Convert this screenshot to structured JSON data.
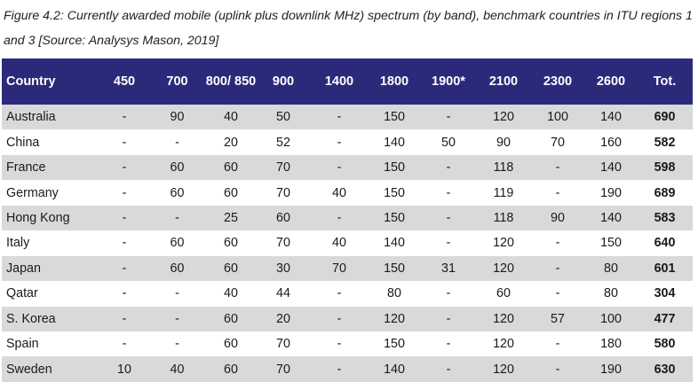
{
  "caption": "Figure 4.2: Currently awarded mobile (uplink plus downlink MHz) spectrum (by band), benchmark countries in ITU regions 1 and 3 [Source: Analysys Mason, 2019]",
  "table": {
    "headers": [
      "Country",
      "450",
      "700",
      "800/ 850",
      "900",
      "1400",
      "1800",
      "1900*",
      "2100",
      "2300",
      "2600",
      "Tot."
    ],
    "rows": [
      [
        "Australia",
        "-",
        "90",
        "40",
        "50",
        "-",
        "150",
        "-",
        "120",
        "100",
        "140",
        "690"
      ],
      [
        "China",
        "-",
        "-",
        "20",
        "52",
        "-",
        "140",
        "50",
        "90",
        "70",
        "160",
        "582"
      ],
      [
        "France",
        "-",
        "60",
        "60",
        "70",
        "-",
        "150",
        "-",
        "118",
        "-",
        "140",
        "598"
      ],
      [
        "Germany",
        "-",
        "60",
        "60",
        "70",
        "40",
        "150",
        "-",
        "119",
        "-",
        "190",
        "689"
      ],
      [
        "Hong Kong",
        "-",
        "-",
        "25",
        "60",
        "-",
        "150",
        "-",
        "118",
        "90",
        "140",
        "583"
      ],
      [
        "Italy",
        "-",
        "60",
        "60",
        "70",
        "40",
        "140",
        "-",
        "120",
        "-",
        "150",
        "640"
      ],
      [
        "Japan",
        "-",
        "60",
        "60",
        "30",
        "70",
        "150",
        "31",
        "120",
        "-",
        "80",
        "601"
      ],
      [
        "Qatar",
        "-",
        "-",
        "40",
        "44",
        "-",
        "80",
        "-",
        "60",
        "-",
        "80",
        "304"
      ],
      [
        "S. Korea",
        "-",
        "-",
        "60",
        "20",
        "-",
        "120",
        "-",
        "120",
        "57",
        "100",
        "477"
      ],
      [
        "Spain",
        "-",
        "-",
        "60",
        "70",
        "-",
        "150",
        "-",
        "120",
        "-",
        "180",
        "580"
      ],
      [
        "Sweden",
        "10",
        "40",
        "60",
        "70",
        "-",
        "140",
        "-",
        "120",
        "-",
        "190",
        "630"
      ]
    ]
  },
  "colors": {
    "header_background": "#2b2a7a",
    "header_text": "#ffffff",
    "shaded_row": "#d9d9d9"
  }
}
